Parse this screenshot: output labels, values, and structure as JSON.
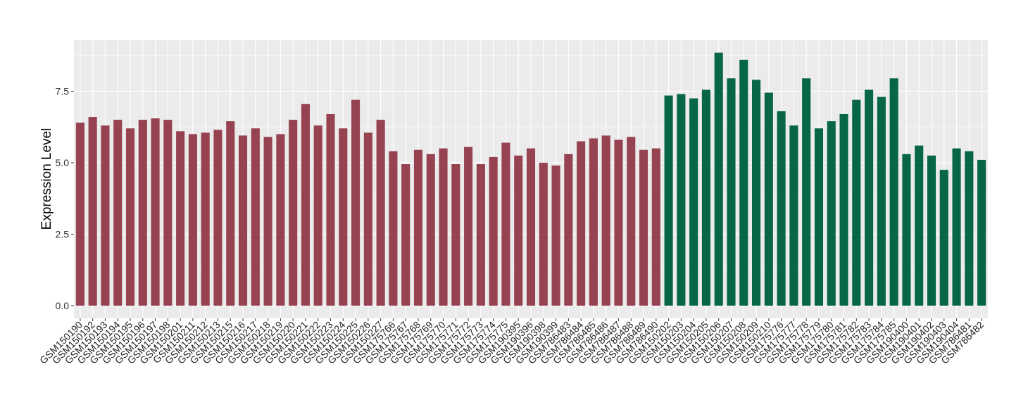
{
  "chart_data": {
    "type": "bar",
    "title": "",
    "xlabel": "",
    "ylabel": "Expression Level",
    "ylim": [
      0,
      9.2
    ],
    "yticks": [
      0,
      2.5,
      5,
      7.5
    ],
    "ytick_labels": [
      "0.0",
      "2.5",
      "5.0",
      "7.5"
    ],
    "grid": true,
    "legend": "none",
    "colors": {
      "group1": "#964250",
      "group2": "#076744",
      "panel": "#ebebeb",
      "grid": "#ffffff"
    },
    "categories": [
      "GSM150190",
      "GSM150192",
      "GSM150193",
      "GSM150194",
      "GSM150195",
      "GSM150196",
      "GSM150197",
      "GSM150198",
      "GSM150201",
      "GSM150211",
      "GSM150212",
      "GSM150213",
      "GSM150215",
      "GSM150216",
      "GSM150217",
      "GSM150218",
      "GSM150219",
      "GSM150220",
      "GSM150221",
      "GSM150222",
      "GSM150223",
      "GSM150224",
      "GSM150225",
      "GSM150226",
      "GSM150227",
      "GSM175766",
      "GSM175767",
      "GSM175768",
      "GSM175769",
      "GSM175770",
      "GSM175771",
      "GSM175772",
      "GSM175773",
      "GSM175774",
      "GSM175775",
      "GSM190395",
      "GSM190396",
      "GSM190398",
      "GSM190399",
      "GSM786483",
      "GSM786484",
      "GSM786485",
      "GSM786486",
      "GSM786487",
      "GSM786488",
      "GSM786489",
      "GSM786490",
      "GSM150202",
      "GSM150203",
      "GSM150204",
      "GSM150205",
      "GSM150206",
      "GSM150207",
      "GSM150208",
      "GSM150209",
      "GSM150210",
      "GSM175776",
      "GSM175777",
      "GSM175778",
      "GSM175779",
      "GSM175780",
      "GSM175781",
      "GSM175782",
      "GSM175783",
      "GSM175784",
      "GSM175785",
      "GSM190400",
      "GSM190401",
      "GSM190402",
      "GSM190403",
      "GSM190404",
      "GSM786481",
      "GSM786482"
    ],
    "values": [
      6.4,
      6.6,
      6.3,
      6.5,
      6.2,
      6.5,
      6.55,
      6.5,
      6.1,
      6.0,
      6.05,
      6.15,
      6.45,
      5.95,
      6.2,
      5.9,
      6.0,
      6.5,
      7.05,
      6.3,
      6.7,
      6.2,
      7.2,
      6.05,
      6.5,
      5.4,
      4.95,
      5.45,
      5.3,
      5.5,
      4.95,
      5.55,
      4.95,
      5.2,
      5.7,
      5.25,
      5.5,
      5.0,
      4.9,
      5.3,
      5.75,
      5.85,
      5.95,
      5.8,
      5.9,
      5.45,
      5.5,
      7.35,
      7.4,
      7.25,
      7.55,
      8.85,
      7.95,
      8.6,
      7.9,
      7.45,
      6.8,
      6.3,
      7.95,
      6.2,
      6.45,
      6.7,
      7.2,
      7.55,
      7.3,
      7.95,
      5.3,
      5.6,
      5.25,
      4.75,
      5.5,
      5.4,
      5.1
    ],
    "bar_groups": [
      0,
      0,
      0,
      0,
      0,
      0,
      0,
      0,
      0,
      0,
      0,
      0,
      0,
      0,
      0,
      0,
      0,
      0,
      0,
      0,
      0,
      0,
      0,
      0,
      0,
      0,
      0,
      0,
      0,
      0,
      0,
      0,
      0,
      0,
      0,
      0,
      0,
      0,
      0,
      0,
      0,
      0,
      0,
      0,
      0,
      0,
      0,
      1,
      1,
      1,
      1,
      1,
      1,
      1,
      1,
      1,
      1,
      1,
      1,
      1,
      1,
      1,
      1,
      1,
      1,
      1,
      1,
      1,
      1,
      1,
      1,
      1,
      1
    ]
  }
}
